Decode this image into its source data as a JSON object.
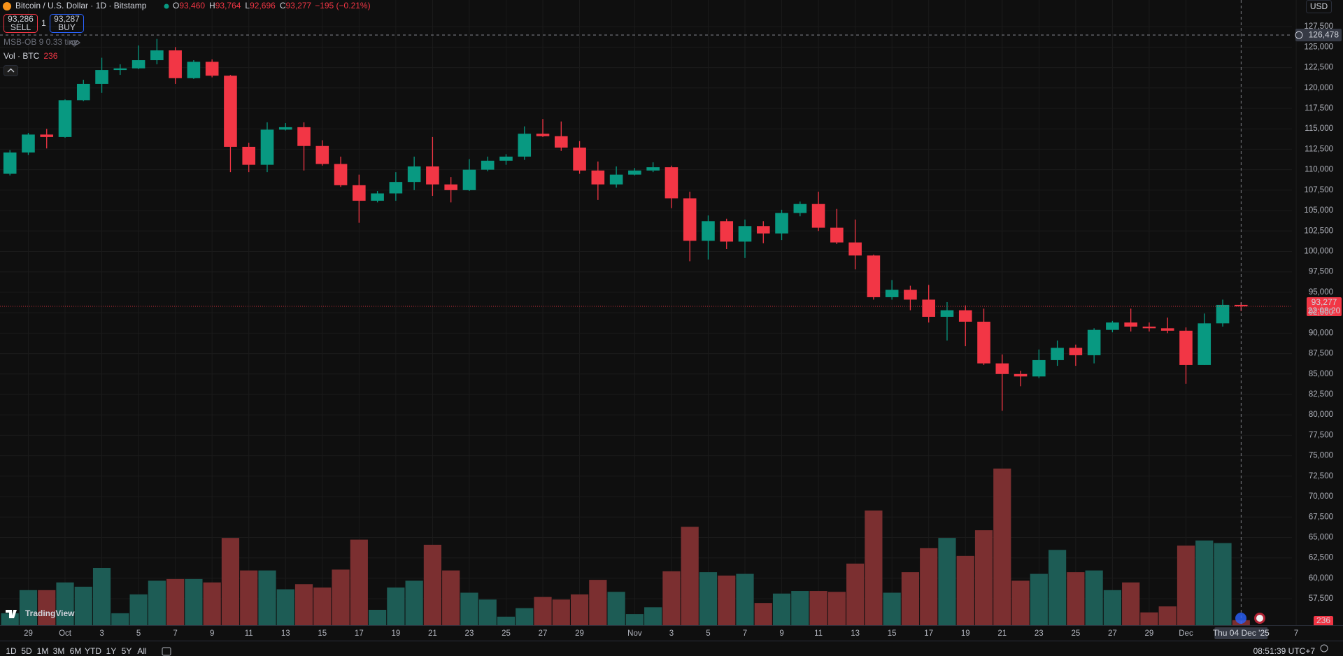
{
  "header": {
    "title": "Bitcoin / U.S. Dollar · 1D · Bitstamp",
    "ohlc": [
      {
        "key": "O",
        "value": "93,460"
      },
      {
        "key": "H",
        "value": "93,764"
      },
      {
        "key": "L",
        "value": "92,696"
      },
      {
        "key": "C",
        "value": "93,277"
      }
    ],
    "change": "−195 (−0.21%)",
    "sell": {
      "price": "93,286",
      "label": "SELL"
    },
    "spread": "1",
    "buy": {
      "price": "93,287",
      "label": "BUY"
    },
    "indicators": [
      "MSB-OB 9 0.33 tiny",
      "Vol · BTC"
    ],
    "currency": "USD",
    "logo": "TradingView"
  },
  "toolbar": {
    "ranges": [
      "1D",
      "5D",
      "1M",
      "3M",
      "6M",
      "YTD",
      "1Y",
      "5Y",
      "All"
    ],
    "clock": "08:51:39 UTC+7"
  },
  "chart_data": {
    "type": "candlestick",
    "categories": [
      null,
      "29",
      null,
      "Oct",
      null,
      "3",
      null,
      "5",
      null,
      "7",
      null,
      "9",
      null,
      "11",
      null,
      "13",
      null,
      "15",
      null,
      "17",
      null,
      "19",
      null,
      "21",
      null,
      "23",
      null,
      "25",
      null,
      "27",
      null,
      "29",
      null,
      null,
      "Nov",
      null,
      "3",
      null,
      "5",
      null,
      "7",
      null,
      "9",
      null,
      "11",
      null,
      "13",
      null,
      "15",
      null,
      "17",
      null,
      "19",
      null,
      "21",
      null,
      "23",
      null,
      "25",
      null,
      "27",
      null,
      "29",
      null,
      "Dec",
      null,
      null,
      null,
      null,
      null,
      "7"
    ],
    "open": [
      109500,
      112100,
      114300,
      114000,
      118500,
      120500,
      122200,
      122400,
      123400,
      124600,
      121200,
      123200,
      121500,
      112800,
      110600,
      114900,
      115200,
      112900,
      110700,
      108100,
      106200,
      107100,
      108500,
      110400,
      108200,
      107500,
      110000,
      111100,
      111600,
      114400,
      114100,
      112700,
      109900,
      108200,
      109400,
      109900,
      110300,
      106500,
      101300,
      103700,
      101200,
      103100,
      102200,
      104700,
      105800,
      102900,
      101100,
      99500,
      94400,
      95300,
      94100,
      92000,
      92800,
      91400,
      86300,
      85000,
      84700,
      86700,
      88200,
      87300,
      90400,
      91300,
      90800,
      90600,
      90300,
      86100,
      91200,
      93460,
      null,
      null,
      null
    ],
    "high": [
      112400,
      114500,
      115000,
      118600,
      121000,
      123700,
      122900,
      125200,
      126000,
      125000,
      123400,
      123500,
      121600,
      113300,
      115800,
      115700,
      115800,
      113600,
      111600,
      109400,
      107400,
      109700,
      111600,
      114000,
      109100,
      111300,
      111600,
      111900,
      115300,
      116200,
      115900,
      113500,
      111000,
      110400,
      110200,
      110900,
      110500,
      107300,
      104400,
      104000,
      103900,
      103700,
      105100,
      106100,
      107300,
      105200,
      103900,
      99600,
      96500,
      95800,
      95900,
      93800,
      93400,
      93000,
      87400,
      85400,
      88000,
      89100,
      88600,
      90600,
      91500,
      93000,
      91300,
      91900,
      90700,
      92400,
      94100,
      93764,
      null,
      null,
      null
    ],
    "low": [
      109300,
      111800,
      112600,
      113900,
      118400,
      119400,
      121600,
      122300,
      122900,
      120500,
      121100,
      121300,
      109700,
      109700,
      109700,
      114800,
      109900,
      110500,
      107900,
      103500,
      106000,
      106200,
      107500,
      106800,
      106000,
      107400,
      109800,
      110600,
      111200,
      114000,
      112300,
      109500,
      106300,
      107800,
      109300,
      109700,
      105300,
      98800,
      99000,
      100300,
      99200,
      101000,
      101400,
      104300,
      102500,
      100900,
      97800,
      94100,
      94100,
      92800,
      91300,
      89100,
      88400,
      86100,
      80500,
      83500,
      84500,
      86000,
      86000,
      86300,
      90100,
      90200,
      90200,
      90000,
      83800,
      86100,
      90800,
      92696,
      null,
      null,
      null
    ],
    "close": [
      112100,
      114300,
      114000,
      118500,
      120500,
      122200,
      122400,
      123400,
      124600,
      121200,
      123200,
      121500,
      112800,
      110600,
      114900,
      115200,
      112900,
      110700,
      108100,
      106200,
      107100,
      108500,
      110400,
      108200,
      107500,
      110000,
      111100,
      111600,
      114400,
      114100,
      112700,
      109900,
      108200,
      109400,
      109900,
      110300,
      106500,
      101300,
      103700,
      101200,
      103100,
      102200,
      104700,
      105800,
      102900,
      101100,
      99500,
      94400,
      95300,
      94100,
      92000,
      92800,
      91400,
      86300,
      85000,
      84700,
      86700,
      88200,
      87300,
      90400,
      91300,
      90800,
      90600,
      90300,
      86100,
      91200,
      93460,
      93277,
      null,
      null,
      null
    ],
    "volume": [
      560,
      1640,
      1640,
      2000,
      1800,
      2680,
      560,
      1440,
      2080,
      2160,
      2160,
      2000,
      4080,
      2560,
      2560,
      1680,
      1920,
      1760,
      2600,
      4000,
      720,
      1760,
      2080,
      3760,
      2560,
      1520,
      1200,
      400,
      800,
      1320,
      1200,
      1440,
      2120,
      1560,
      520,
      840,
      2520,
      4600,
      2480,
      2320,
      2400,
      1040,
      1480,
      1600,
      1600,
      1560,
      2880,
      5360,
      1520,
      2480,
      3600,
      4080,
      3240,
      4440,
      7320,
      2080,
      2400,
      3520,
      2480,
      2560,
      1640,
      2000,
      600,
      880,
      3720,
      3960,
      3840,
      236,
      null,
      null,
      null
    ],
    "up_color": "#089981",
    "down_color": "#f23645",
    "volume_up_color": "#1d5c55",
    "volume_down_color": "#7b2f30",
    "ylim": [
      54260,
      130764
    ],
    "yticks": [
      {
        "value": 57500,
        "label": "57,500"
      },
      {
        "value": 60000,
        "label": "60,000"
      },
      {
        "value": 62500,
        "label": "62,500"
      },
      {
        "value": 65000,
        "label": "65,000"
      },
      {
        "value": 67500,
        "label": "67,500"
      },
      {
        "value": 70000,
        "label": "70,000"
      },
      {
        "value": 72500,
        "label": "72,500"
      },
      {
        "value": 75000,
        "label": "75,000"
      },
      {
        "value": 77500,
        "label": "77,500"
      },
      {
        "value": 80000,
        "label": "80,000"
      },
      {
        "value": 82500,
        "label": "82,500"
      },
      {
        "value": 85000,
        "label": "85,000"
      },
      {
        "value": 87500,
        "label": "87,500"
      },
      {
        "value": 90000,
        "label": "90,000"
      },
      {
        "value": 92500,
        "label": "92,500"
      },
      {
        "value": 95000,
        "label": "95,000"
      },
      {
        "value": 97500,
        "label": "97,500"
      },
      {
        "value": 100000,
        "label": "100,000"
      },
      {
        "value": 102500,
        "label": "102,500"
      },
      {
        "value": 105000,
        "label": "105,000"
      },
      {
        "value": 107500,
        "label": "107,500"
      },
      {
        "value": 110000,
        "label": "110,000"
      },
      {
        "value": 112500,
        "label": "112,500"
      },
      {
        "value": 115000,
        "label": "115,000"
      },
      {
        "value": 117500,
        "label": "117,500"
      },
      {
        "value": 120000,
        "label": "120,000"
      },
      {
        "value": 122500,
        "label": "122,500"
      },
      {
        "value": 125000,
        "label": "125,000"
      },
      {
        "value": 127500,
        "label": "127,500"
      }
    ],
    "grid": true,
    "last_price": {
      "value": 93277,
      "label": "93,277",
      "countdown": "22:08:20"
    },
    "crosshair": {
      "price": 126478,
      "price_label": "126,478",
      "date_label": "Thu 04 Dec '25"
    }
  }
}
